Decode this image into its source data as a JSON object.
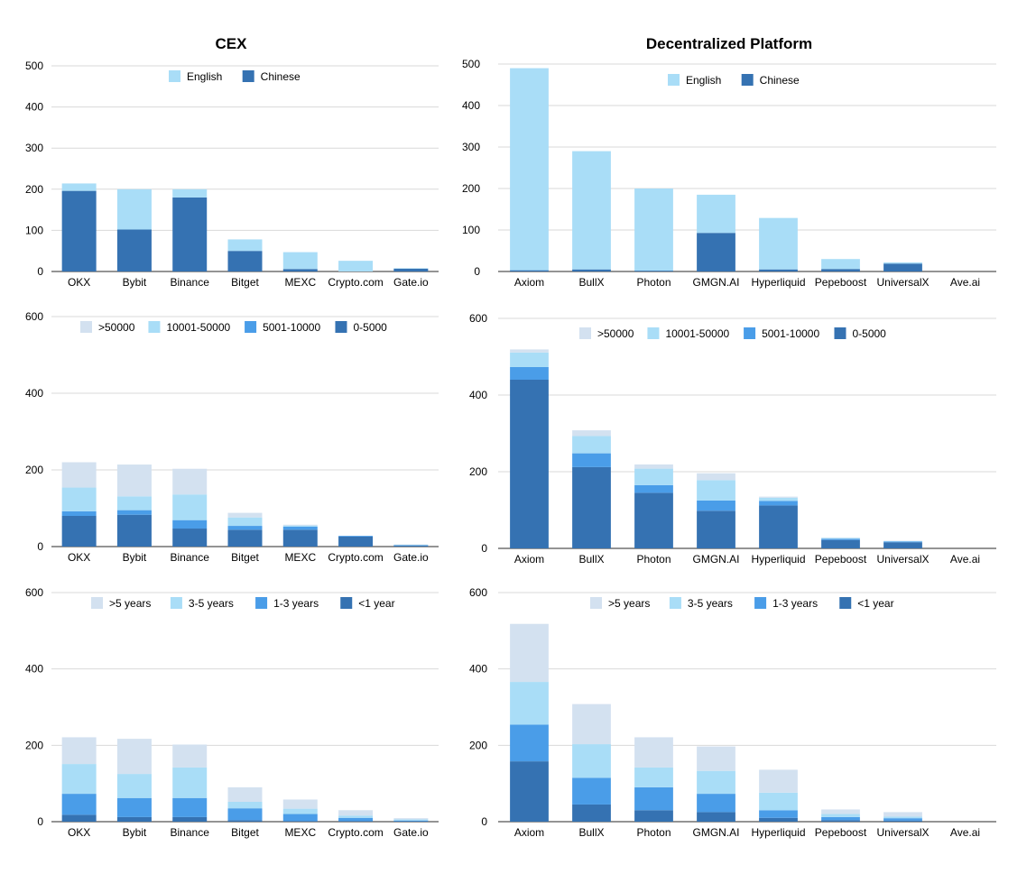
{
  "columns": {
    "left_title": "CEX",
    "right_title": "Decentralized Platform"
  },
  "colors": {
    "darkest": "#3572b2",
    "mid": "#4a9de8",
    "light": "#a9ddf7",
    "lightest": "#d3e1f0",
    "grid": "#d9d9d9",
    "axis": "#555555",
    "text": "#000000"
  },
  "chart_data": [
    {
      "id": "cex-language",
      "type": "bar",
      "stacked": true,
      "title": "CEX",
      "categories": [
        "OKX",
        "Bybit",
        "Binance",
        "Bitget",
        "MEXC",
        "Crypto.com",
        "Gate.io"
      ],
      "series": [
        {
          "name": "English",
          "color": "#a9ddf7",
          "values": [
            18,
            98,
            20,
            28,
            41,
            26,
            1
          ]
        },
        {
          "name": "Chinese",
          "color": "#3572b2",
          "values": [
            196,
            102,
            180,
            50,
            6,
            0,
            7
          ]
        }
      ],
      "ylim": [
        0,
        500
      ],
      "yticks": [
        0,
        100,
        200,
        300,
        400,
        500
      ],
      "grid": true,
      "legend_position": "top",
      "legend_order": [
        "English",
        "Chinese"
      ]
    },
    {
      "id": "dex-language",
      "type": "bar",
      "stacked": true,
      "title": "Decentralized Platform",
      "categories": [
        "Axiom",
        "BullX",
        "Photon",
        "GMGN.AI",
        "Hyperliquid",
        "Pepeboost",
        "UniversalX",
        "Ave.ai"
      ],
      "series": [
        {
          "name": "English",
          "color": "#a9ddf7",
          "values": [
            487,
            285,
            198,
            92,
            124,
            24,
            3,
            0
          ]
        },
        {
          "name": "Chinese",
          "color": "#3572b2",
          "values": [
            3,
            5,
            2,
            93,
            5,
            6,
            19,
            0
          ]
        }
      ],
      "ylim": [
        0,
        500
      ],
      "yticks": [
        0,
        100,
        200,
        300,
        400,
        500
      ],
      "grid": true,
      "legend_position": "top",
      "legend_order": [
        "English",
        "Chinese"
      ]
    },
    {
      "id": "cex-followers",
      "type": "bar",
      "stacked": true,
      "categories": [
        "OKX",
        "Bybit",
        "Binance",
        "Bitget",
        "MEXC",
        "Crypto.com",
        "Gate.io"
      ],
      "series": [
        {
          "name": "0-5000",
          "color": "#3572b2",
          "values": [
            80,
            83,
            47,
            44,
            44,
            26,
            3
          ]
        },
        {
          "name": "5001-10000",
          "color": "#4a9de8",
          "values": [
            12,
            12,
            22,
            10,
            8,
            2,
            1
          ]
        },
        {
          "name": "10001-50000",
          "color": "#a9ddf7",
          "values": [
            62,
            36,
            67,
            22,
            3,
            0,
            1
          ]
        },
        {
          "name": ">50000",
          "color": "#d3e1f0",
          "values": [
            66,
            83,
            67,
            12,
            2,
            0,
            1
          ]
        }
      ],
      "ylim": [
        0,
        600
      ],
      "yticks": [
        0,
        200,
        400,
        600
      ],
      "grid": true,
      "legend_position": "top",
      "legend_order": [
        ">50000",
        "10001-50000",
        "5001-10000",
        "0-5000"
      ]
    },
    {
      "id": "dex-followers",
      "type": "bar",
      "stacked": true,
      "categories": [
        "Axiom",
        "BullX",
        "Photon",
        "GMGN.AI",
        "Hyperliquid",
        "Pepeboost",
        "UniversalX",
        "Ave.ai"
      ],
      "series": [
        {
          "name": "0-5000",
          "color": "#3572b2",
          "values": [
            440,
            212,
            145,
            98,
            112,
            22,
            16,
            0
          ]
        },
        {
          "name": "5001-10000",
          "color": "#4a9de8",
          "values": [
            33,
            36,
            20,
            27,
            12,
            3,
            2,
            0
          ]
        },
        {
          "name": "10001-50000",
          "color": "#a9ddf7",
          "values": [
            38,
            45,
            43,
            53,
            8,
            2,
            1,
            0
          ]
        },
        {
          "name": ">50000",
          "color": "#d3e1f0",
          "values": [
            8,
            15,
            11,
            18,
            3,
            1,
            1,
            0
          ]
        }
      ],
      "ylim": [
        0,
        600
      ],
      "yticks": [
        0,
        200,
        400,
        600
      ],
      "grid": true,
      "legend_position": "top",
      "legend_order": [
        ">50000",
        "10001-50000",
        "5001-10000",
        "0-5000"
      ]
    },
    {
      "id": "cex-account-age",
      "type": "bar",
      "stacked": true,
      "categories": [
        "OKX",
        "Bybit",
        "Binance",
        "Bitget",
        "MEXC",
        "Crypto.com",
        "Gate.io"
      ],
      "series": [
        {
          "name": "<1 year",
          "color": "#3572b2",
          "values": [
            18,
            12,
            12,
            4,
            2,
            2,
            1
          ]
        },
        {
          "name": "1-3 years",
          "color": "#4a9de8",
          "values": [
            55,
            50,
            50,
            31,
            18,
            8,
            2
          ]
        },
        {
          "name": "3-5 years",
          "color": "#a9ddf7",
          "values": [
            78,
            63,
            80,
            17,
            14,
            6,
            3
          ]
        },
        {
          "name": ">5 years",
          "color": "#d3e1f0",
          "values": [
            70,
            92,
            60,
            38,
            24,
            14,
            3
          ]
        }
      ],
      "ylim": [
        0,
        600
      ],
      "yticks": [
        0,
        200,
        400,
        600
      ],
      "grid": true,
      "legend_position": "top",
      "legend_order": [
        ">5 years",
        "3-5 years",
        "1-3 years",
        "<1 year"
      ]
    },
    {
      "id": "dex-account-age",
      "type": "bar",
      "stacked": true,
      "categories": [
        "Axiom",
        "BullX",
        "Photon",
        "GMGN.AI",
        "Hyperliquid",
        "Pepeboost",
        "UniversalX",
        "Ave.ai"
      ],
      "series": [
        {
          "name": "<1 year",
          "color": "#3572b2",
          "values": [
            158,
            45,
            30,
            25,
            10,
            4,
            3,
            0
          ]
        },
        {
          "name": "1-3 years",
          "color": "#4a9de8",
          "values": [
            96,
            70,
            60,
            48,
            20,
            8,
            6,
            0
          ]
        },
        {
          "name": "3-5 years",
          "color": "#a9ddf7",
          "values": [
            112,
            88,
            52,
            60,
            46,
            8,
            4,
            0
          ]
        },
        {
          "name": ">5 years",
          "color": "#d3e1f0",
          "values": [
            152,
            105,
            79,
            64,
            60,
            12,
            12,
            0
          ]
        }
      ],
      "ylim": [
        0,
        600
      ],
      "yticks": [
        0,
        200,
        400,
        600
      ],
      "grid": true,
      "legend_position": "top",
      "legend_order": [
        ">5 years",
        "3-5 years",
        "1-3 years",
        "<1 year"
      ]
    }
  ]
}
